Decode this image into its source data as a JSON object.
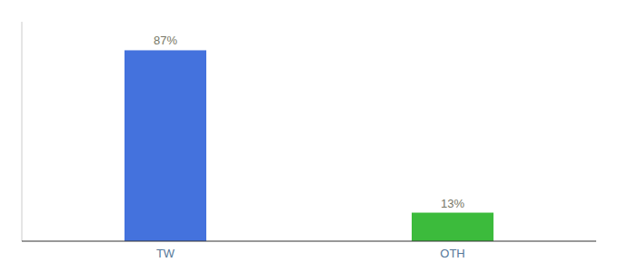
{
  "chart_data": {
    "type": "bar",
    "categories": [
      "TW",
      "OTH"
    ],
    "values": [
      87,
      13
    ],
    "value_labels": [
      "87%",
      "13%"
    ],
    "colors": [
      "#4472DD",
      "#3CBB3C"
    ],
    "ylim": [
      0,
      100
    ],
    "grid": false,
    "data_labels": true,
    "tick_labels": "x"
  }
}
